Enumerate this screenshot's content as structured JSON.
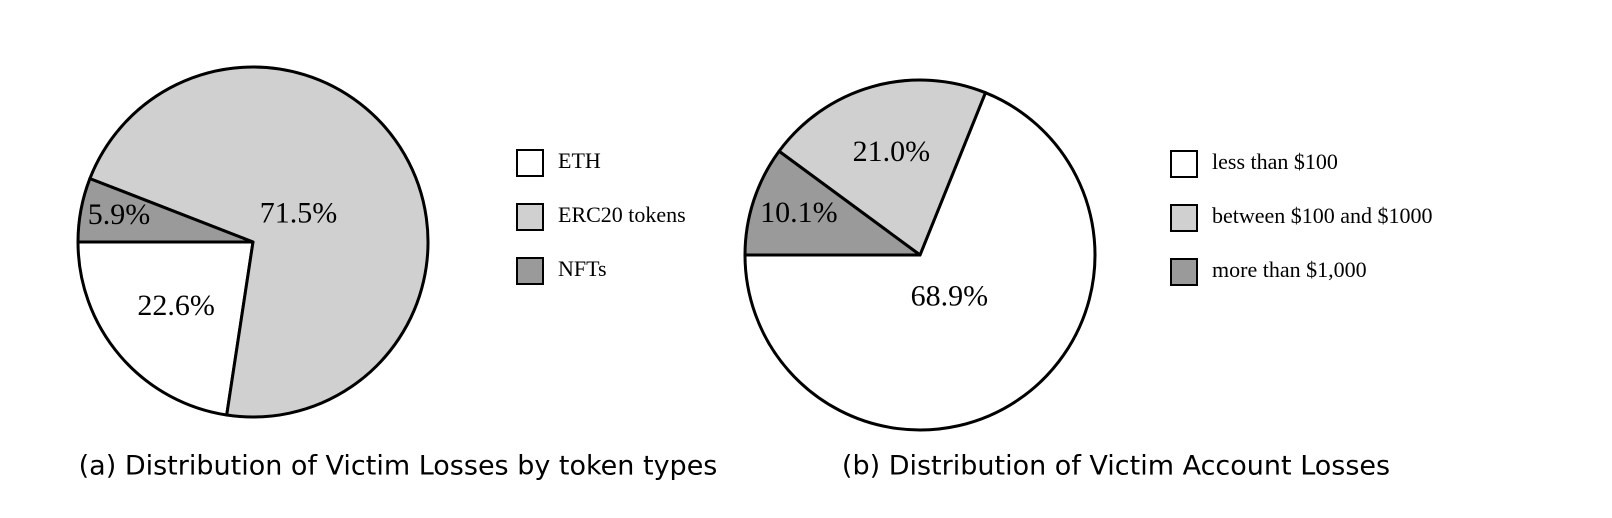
{
  "chart_data": [
    {
      "type": "pie",
      "title": "(a) Distribution of Victim Losses by token types",
      "categories": [
        "ETH",
        "ERC20 tokens",
        "NFTs"
      ],
      "values": [
        22.6,
        71.5,
        5.9
      ],
      "value_labels": [
        "22.6%",
        "71.5%",
        "5.9%"
      ],
      "colors": [
        "#ffffff",
        "#d0d0d0",
        "#9a9a9a"
      ]
    },
    {
      "type": "pie",
      "title": "(b) Distribution of Victim Account Losses",
      "categories": [
        "less than $100",
        "between $100 and $1000",
        "more than $1,000"
      ],
      "values": [
        68.9,
        21.0,
        10.1
      ],
      "value_labels": [
        "68.9%",
        "21.0%",
        "10.1%"
      ],
      "colors": [
        "#ffffff",
        "#d0d0d0",
        "#9a9a9a"
      ]
    }
  ]
}
